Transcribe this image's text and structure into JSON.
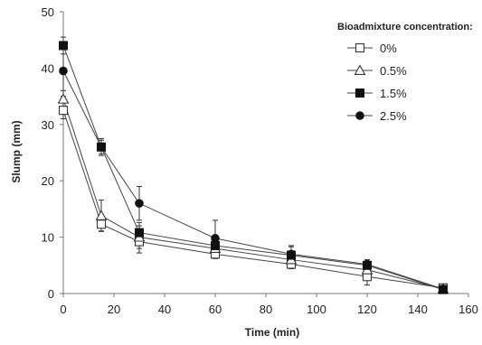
{
  "chart_data": {
    "type": "line",
    "xlabel": "Time (min)",
    "ylabel": "Slump (mm)",
    "xlim": [
      0,
      160
    ],
    "ylim": [
      0,
      50
    ],
    "xticks": [
      0,
      20,
      40,
      60,
      80,
      100,
      120,
      140,
      160
    ],
    "yticks": [
      0,
      10,
      20,
      30,
      40,
      50
    ],
    "grid": false,
    "legend": {
      "title": "Bioadmixture concentration:",
      "placement": "top-right"
    },
    "x": [
      0,
      15,
      30,
      60,
      90,
      120,
      150
    ],
    "series": [
      {
        "name": "0%",
        "marker": "square-open",
        "values": [
          32.5,
          12.3,
          9.2,
          7.0,
          5.2,
          3.0,
          1.0
        ],
        "errors": [
          1.5,
          1.2,
          2.0,
          0.8,
          0.8,
          1.5,
          0.3
        ]
      },
      {
        "name": "0.5%",
        "marker": "triangle-open",
        "values": [
          34.5,
          13.8,
          10.0,
          8.0,
          6.0,
          4.2,
          0.8
        ],
        "errors": [
          1.5,
          2.8,
          2.0,
          1.0,
          1.0,
          1.0,
          0.3
        ]
      },
      {
        "name": "1.5%",
        "marker": "square-filled",
        "values": [
          44.0,
          26.0,
          10.8,
          8.5,
          6.8,
          5.0,
          0.7
        ],
        "errors": [
          1.5,
          1.2,
          1.8,
          1.0,
          1.5,
          0.7,
          0.3
        ]
      },
      {
        "name": "2.5%",
        "marker": "circle-filled",
        "values": [
          39.5,
          26.0,
          16.0,
          9.8,
          7.0,
          5.2,
          0.8
        ],
        "errors": [
          4.5,
          1.5,
          3.0,
          3.2,
          1.5,
          0.8,
          0.3
        ]
      }
    ]
  }
}
